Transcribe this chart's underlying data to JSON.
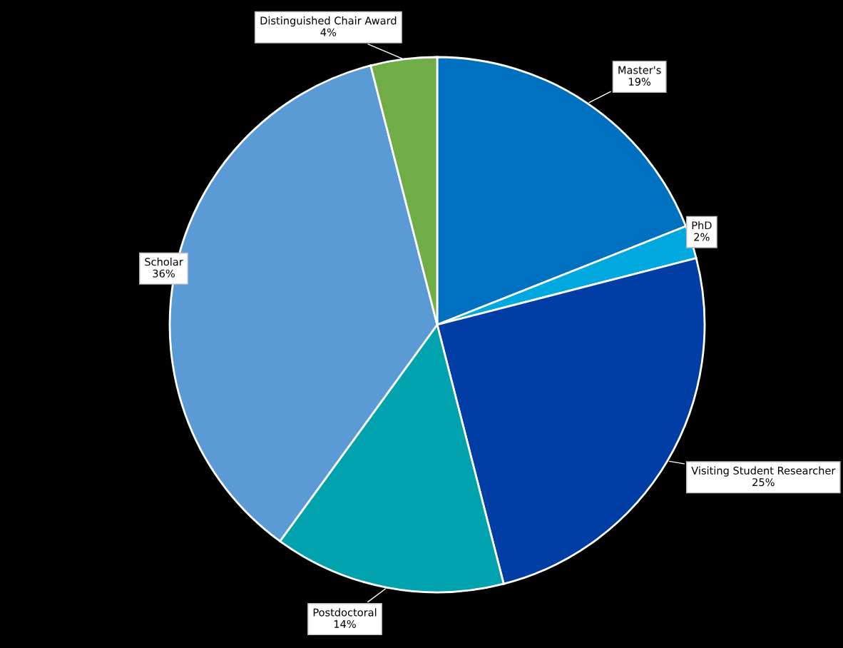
{
  "chart_data": {
    "type": "pie",
    "categories": [
      "Master's",
      "PhD",
      "Visiting Student Researcher",
      "Postdoctoral",
      "Scholar",
      "Distinguished Chair Award"
    ],
    "values": [
      19,
      2,
      25,
      14,
      36,
      4
    ],
    "value_labels": [
      "19%",
      "2%",
      "25%",
      "14%",
      "36%",
      "4%"
    ],
    "colors": [
      "#0070c0",
      "#00a8e0",
      "#003da5",
      "#00a3ad",
      "#5b9bd5",
      "#70ad47"
    ],
    "legend": false
  }
}
